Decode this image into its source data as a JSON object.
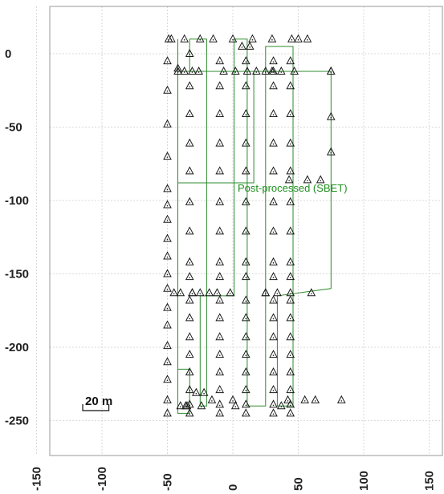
{
  "chart_data": {
    "type": "scatter",
    "title": "",
    "xlabel": "",
    "ylabel": "",
    "xlim": [
      -150,
      150
    ],
    "ylim": [
      -250,
      15
    ],
    "x_ticks": [
      -150,
      -100,
      -50,
      0,
      50,
      100,
      150
    ],
    "y_ticks": [
      0,
      -50,
      -100,
      -150,
      -200,
      -250
    ],
    "grid": true,
    "annotations": {
      "series_label": "Post-processed (SBET)",
      "scale_bar": "20 m"
    },
    "colors": {
      "track": "#2e8b2e",
      "marker": "#1a1a1a",
      "label": "#1f8f1f"
    },
    "series": [
      {
        "name": "Post-processed (SBET)",
        "style": "line",
        "x": [
          -42,
          -42,
          -33,
          -33,
          -42,
          -42,
          -42,
          -33,
          -33,
          -20,
          -20,
          -25,
          -25,
          1,
          1,
          11,
          11,
          25,
          25,
          46,
          46,
          34,
          34,
          75,
          75,
          -42,
          -42,
          16,
          16,
          75
        ],
        "y": [
          10,
          -215,
          -215,
          -245,
          -245,
          -160,
          -12,
          -12,
          10,
          10,
          -240,
          -240,
          -165,
          -165,
          10,
          10,
          -240,
          -240,
          5,
          5,
          -240,
          -240,
          -165,
          -160,
          -12,
          -12,
          -88,
          -88,
          -12,
          -12
        ]
      },
      {
        "name": "marker",
        "style": "triangle",
        "x": [
          -47,
          -37,
          -49,
          -42,
          -25,
          -15,
          0,
          15,
          30,
          45,
          50,
          57,
          7,
          13,
          2,
          11,
          25,
          31,
          37,
          -37,
          -31,
          -26,
          -42,
          -7,
          18,
          30,
          47,
          75,
          -50,
          -50,
          -50,
          -50,
          -50,
          -50,
          -50,
          -50,
          -50,
          -50,
          -50,
          -50,
          -50,
          -50,
          -50,
          -50,
          -50,
          -50,
          -33,
          -33,
          -33,
          -33,
          -33,
          -33,
          -33,
          -33,
          -33,
          -33,
          -33,
          -33,
          -33,
          -33,
          -33,
          -33,
          -33,
          -10,
          -10,
          -10,
          -10,
          -10,
          -10,
          -10,
          -10,
          -10,
          -10,
          -10,
          -10,
          -10,
          -10,
          -10,
          -10,
          -10,
          10,
          10,
          10,
          10,
          10,
          10,
          10,
          10,
          10,
          10,
          10,
          10,
          10,
          10,
          10,
          10,
          10,
          31,
          31,
          31,
          31,
          31,
          31,
          31,
          31,
          31,
          31,
          31,
          31,
          31,
          31,
          31,
          31,
          31,
          44,
          44,
          44,
          44,
          44,
          44,
          44,
          44,
          44,
          44,
          44,
          44,
          44,
          44,
          44,
          44,
          44,
          75,
          75,
          75,
          67,
          43,
          57,
          -45,
          -40,
          -31,
          -31,
          -25,
          -18,
          -12,
          -2,
          25,
          34,
          25,
          44,
          60,
          -40,
          -35,
          -36,
          -28,
          -22,
          -24,
          -16,
          0,
          2,
          37,
          42,
          55,
          63,
          83
        ],
        "y": [
          10,
          10,
          10,
          -10,
          10,
          10,
          10,
          10,
          10,
          10,
          10,
          10,
          5,
          5,
          -12,
          -12,
          -12,
          -12,
          -12,
          -12,
          -12,
          -12,
          -12,
          -12,
          -12,
          -12,
          -12,
          -12,
          -5,
          -25,
          -48,
          -70,
          -92,
          -103,
          -113,
          -126,
          -138,
          -150,
          -160,
          -173,
          -185,
          -199,
          -210,
          -222,
          -236,
          -245,
          0,
          -22,
          -41,
          -61,
          -80,
          -101,
          -121,
          -142,
          -152,
          -168,
          -180,
          -193,
          -205,
          -217,
          -229,
          -239,
          -245,
          -5,
          -22,
          -41,
          -61,
          -80,
          -101,
          -121,
          -142,
          -152,
          -168,
          -180,
          -193,
          -205,
          -217,
          -229,
          -239,
          -245,
          -5,
          -22,
          -41,
          -61,
          -80,
          -101,
          -121,
          -142,
          -152,
          -168,
          -180,
          -193,
          -205,
          -217,
          -229,
          -239,
          -245,
          -5,
          -22,
          -41,
          -61,
          -80,
          -101,
          -121,
          -142,
          -152,
          -168,
          -180,
          -193,
          -205,
          -217,
          -229,
          -239,
          -245,
          -5,
          -22,
          -41,
          -61,
          -80,
          -101,
          -121,
          -142,
          -152,
          -168,
          -180,
          -193,
          -205,
          -217,
          -229,
          -239,
          -245,
          -12,
          -43,
          -67,
          -86,
          -86,
          -86,
          -163,
          -163,
          -163,
          -163,
          -163,
          -163,
          -163,
          -163,
          -163,
          -163,
          -163,
          -163,
          -163,
          -240,
          -240,
          -240,
          -231,
          -231,
          -240,
          -236,
          -236,
          -240,
          -240,
          -236,
          -236,
          -236,
          -236
        ]
      }
    ]
  }
}
